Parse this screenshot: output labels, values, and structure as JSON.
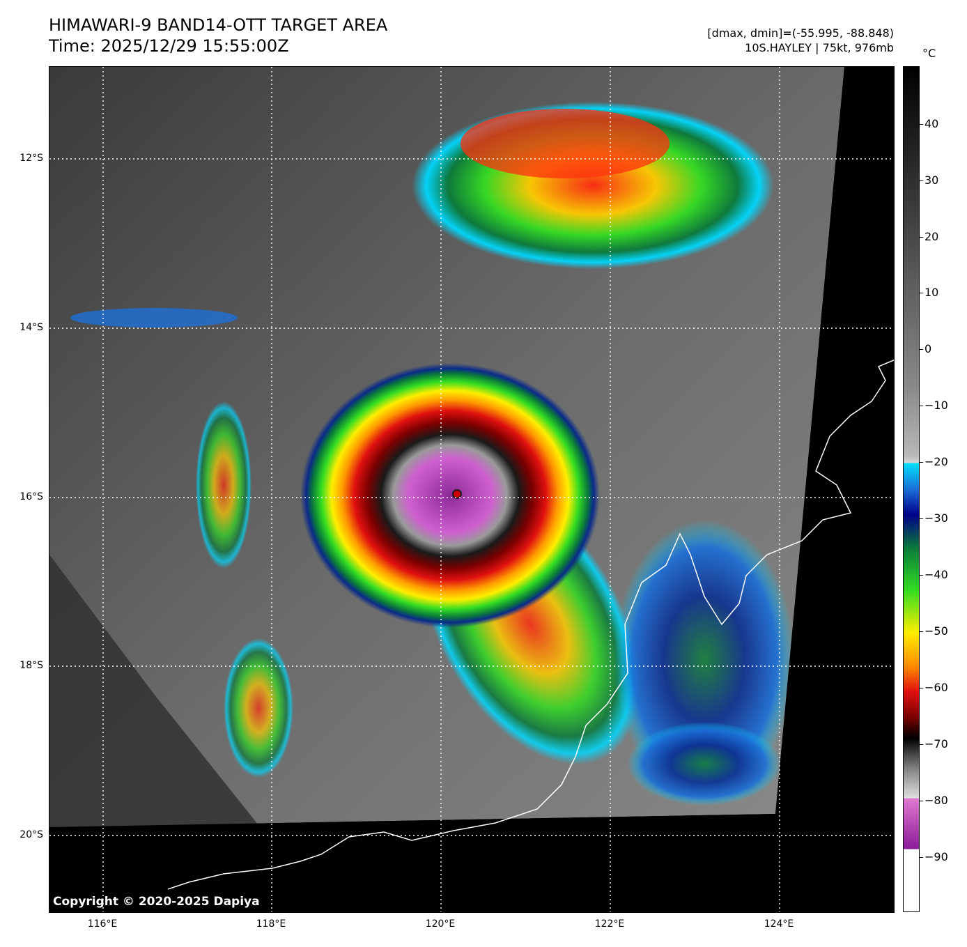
{
  "header": {
    "title": "HIMAWARI-9 BAND14-OTT TARGET AREA",
    "time": "Time: 2025/12/29 15:55:00Z",
    "range": "[dmax, dmin]=(-55.995, -88.848)",
    "storm": "10S.HAYLEY | 75kt, 976mb"
  },
  "colorbar": {
    "unit": "°C",
    "ticks": [
      "40",
      "30",
      "20",
      "10",
      "0",
      "−10",
      "−20",
      "−30",
      "−40",
      "−50",
      "−60",
      "−70",
      "−80",
      "−90"
    ]
  },
  "axes": {
    "lat_labels": [
      "12°S",
      "14°S",
      "16°S",
      "18°S",
      "20°S"
    ],
    "lon_labels": [
      "116°E",
      "118°E",
      "120°E",
      "122°E",
      "124°E"
    ]
  },
  "copyright": "Copyright © 2020-2025 Dapiya",
  "colors": {
    "background_clear": "#4a4a4a",
    "outside_data": "#000000",
    "coastline": "#ffffff",
    "gridline": "#ffffff"
  }
}
